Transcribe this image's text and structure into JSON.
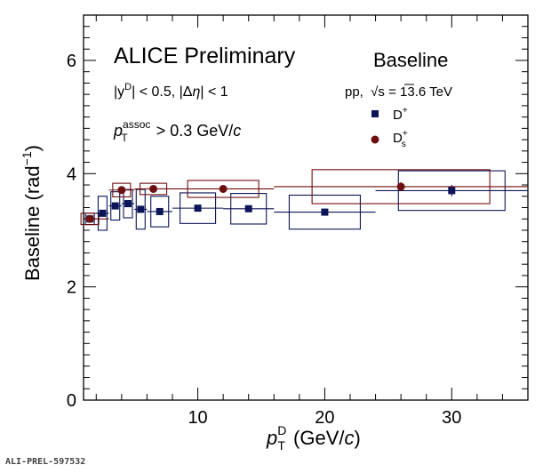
{
  "chart_data": {
    "type": "scatter",
    "title": "ALICE Preliminary",
    "subtitle": "Baseline",
    "annotations": [
      "|y^D| < 0.5, |Δη| < 1",
      "p_T^assoc > 0.3 GeV/c",
      "pp, √s = 13.6 TeV"
    ],
    "xlabel": "p_T^D (GeV/c)",
    "ylabel": "Baseline (rad^-1)",
    "xlim": [
      1,
      36
    ],
    "ylim": [
      0,
      6.8
    ],
    "xticks": [
      10,
      20,
      30
    ],
    "yticks": [
      0,
      2,
      4,
      6
    ],
    "grid": false,
    "legend_position": "top-right",
    "series": [
      {
        "name": "D+",
        "color": "#0b1557",
        "marker": "square",
        "points": [
          {
            "x": 1.5,
            "y": 3.2,
            "xerr": [
              1,
              2
            ],
            "stat": 0.03,
            "syst": 0.1
          },
          {
            "x": 2.5,
            "y": 3.3,
            "xerr": [
              2,
              3
            ],
            "stat": 0.03,
            "syst": 0.3
          },
          {
            "x": 3.5,
            "y": 3.43,
            "xerr": [
              3,
              4
            ],
            "stat": 0.03,
            "syst": 0.25
          },
          {
            "x": 4.5,
            "y": 3.47,
            "xerr": [
              4,
              5
            ],
            "stat": 0.04,
            "syst": 0.25
          },
          {
            "x": 5.5,
            "y": 3.37,
            "xerr": [
              5,
              6
            ],
            "stat": 0.04,
            "syst": 0.35
          },
          {
            "x": 7,
            "y": 3.33,
            "xerr": [
              6,
              8
            ],
            "stat": 0.04,
            "syst": 0.27
          },
          {
            "x": 10,
            "y": 3.39,
            "xerr": [
              8,
              12
            ],
            "stat": 0.04,
            "syst": 0.27
          },
          {
            "x": 14,
            "y": 3.38,
            "xerr": [
              12,
              16
            ],
            "stat": 0.05,
            "syst": 0.27
          },
          {
            "x": 20,
            "y": 3.32,
            "xerr": [
              16,
              24
            ],
            "stat": 0.06,
            "syst": 0.3
          },
          {
            "x": 30,
            "y": 3.7,
            "xerr": [
              24,
              36
            ],
            "stat": 0.1,
            "syst": 0.35
          }
        ]
      },
      {
        "name": "Ds+",
        "color": "#6e0f0f",
        "marker": "circle",
        "points": [
          {
            "x": 1.5,
            "y": 3.2,
            "xerr": [
              1,
              3
            ],
            "stat": 0.03,
            "syst": 0.1
          },
          {
            "x": 4,
            "y": 3.71,
            "xerr": [
              3,
              5
            ],
            "stat": 0.04,
            "syst": 0.12
          },
          {
            "x": 6.5,
            "y": 3.73,
            "xerr": [
              5,
              8
            ],
            "stat": 0.04,
            "syst": 0.1
          },
          {
            "x": 12,
            "y": 3.73,
            "xerr": [
              8,
              16
            ],
            "stat": 0.05,
            "syst": 0.15
          },
          {
            "x": 26,
            "y": 3.77,
            "xerr": [
              16,
              36
            ],
            "stat": 0.08,
            "syst": 0.3
          }
        ]
      }
    ]
  },
  "legend": {
    "title": "Baseline",
    "energy": "pp,  √s = 13.6 TeV",
    "items": [
      {
        "label": "D",
        "sup": "+",
        "sub": ""
      },
      {
        "label": "D",
        "sup": "+",
        "sub": "s"
      }
    ]
  },
  "labels": {
    "experiment": "ALICE Preliminary",
    "rapidity": "|y",
    "rapidity_sup": "D",
    "rapidity_rest": "| < 0.5, |Δ",
    "eta": "η",
    "eta_rest": "| < 1",
    "pt": "p",
    "pt_sub": "T",
    "pt_sup": "assoc",
    "pt_rest": " > 0.3 GeV/",
    "c": "c",
    "xaxis_p": "p",
    "xaxis_sub": "T",
    "xaxis_sup": "D",
    "xaxis_rest": " (GeV/",
    "xaxis_c": "c",
    "xaxis_close": ")",
    "yaxis": "Baseline (rad",
    "yaxis_sup": "−1",
    "yaxis_close": ")"
  },
  "footer_ref": "ALI-PREL-597532"
}
